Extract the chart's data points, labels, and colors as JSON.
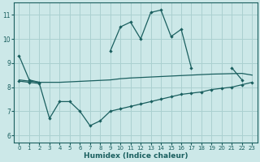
{
  "x": [
    0,
    1,
    2,
    3,
    4,
    5,
    6,
    7,
    8,
    9,
    10,
    11,
    12,
    13,
    14,
    15,
    16,
    17,
    18,
    19,
    20,
    21,
    22,
    23
  ],
  "line_main": [
    9.3,
    8.3,
    8.2,
    null,
    null,
    null,
    null,
    null,
    null,
    9.5,
    10.5,
    10.7,
    10.0,
    11.1,
    11.2,
    10.1,
    10.4,
    8.8,
    null,
    null,
    null,
    8.8,
    8.3,
    null
  ],
  "line_upper": [
    8.3,
    8.25,
    8.2,
    8.2,
    8.2,
    8.22,
    8.24,
    8.26,
    8.28,
    8.3,
    8.35,
    8.38,
    8.4,
    8.42,
    8.44,
    8.46,
    8.48,
    8.5,
    8.52,
    8.54,
    8.55,
    8.56,
    8.57,
    8.5
  ],
  "line_lower": [
    8.25,
    8.2,
    8.15,
    6.7,
    7.4,
    7.4,
    7.0,
    6.4,
    6.6,
    7.0,
    7.1,
    7.2,
    7.3,
    7.4,
    7.5,
    7.6,
    7.7,
    7.75,
    7.8,
    7.9,
    7.95,
    8.0,
    8.1,
    8.2
  ],
  "bg_color": "#cce8e8",
  "grid_color": "#aad0d0",
  "line_color": "#1a5f5f",
  "xlabel": "Humidex (Indice chaleur)",
  "ylim": [
    5.7,
    11.5
  ],
  "xlim": [
    -0.5,
    23.5
  ],
  "yticks": [
    6,
    7,
    8,
    9,
    10,
    11
  ],
  "xticks": [
    0,
    1,
    2,
    3,
    4,
    5,
    6,
    7,
    8,
    9,
    10,
    11,
    12,
    13,
    14,
    15,
    16,
    17,
    18,
    19,
    20,
    21,
    22,
    23
  ],
  "marker": "D",
  "markersize": 2.2,
  "linewidth": 0.9
}
